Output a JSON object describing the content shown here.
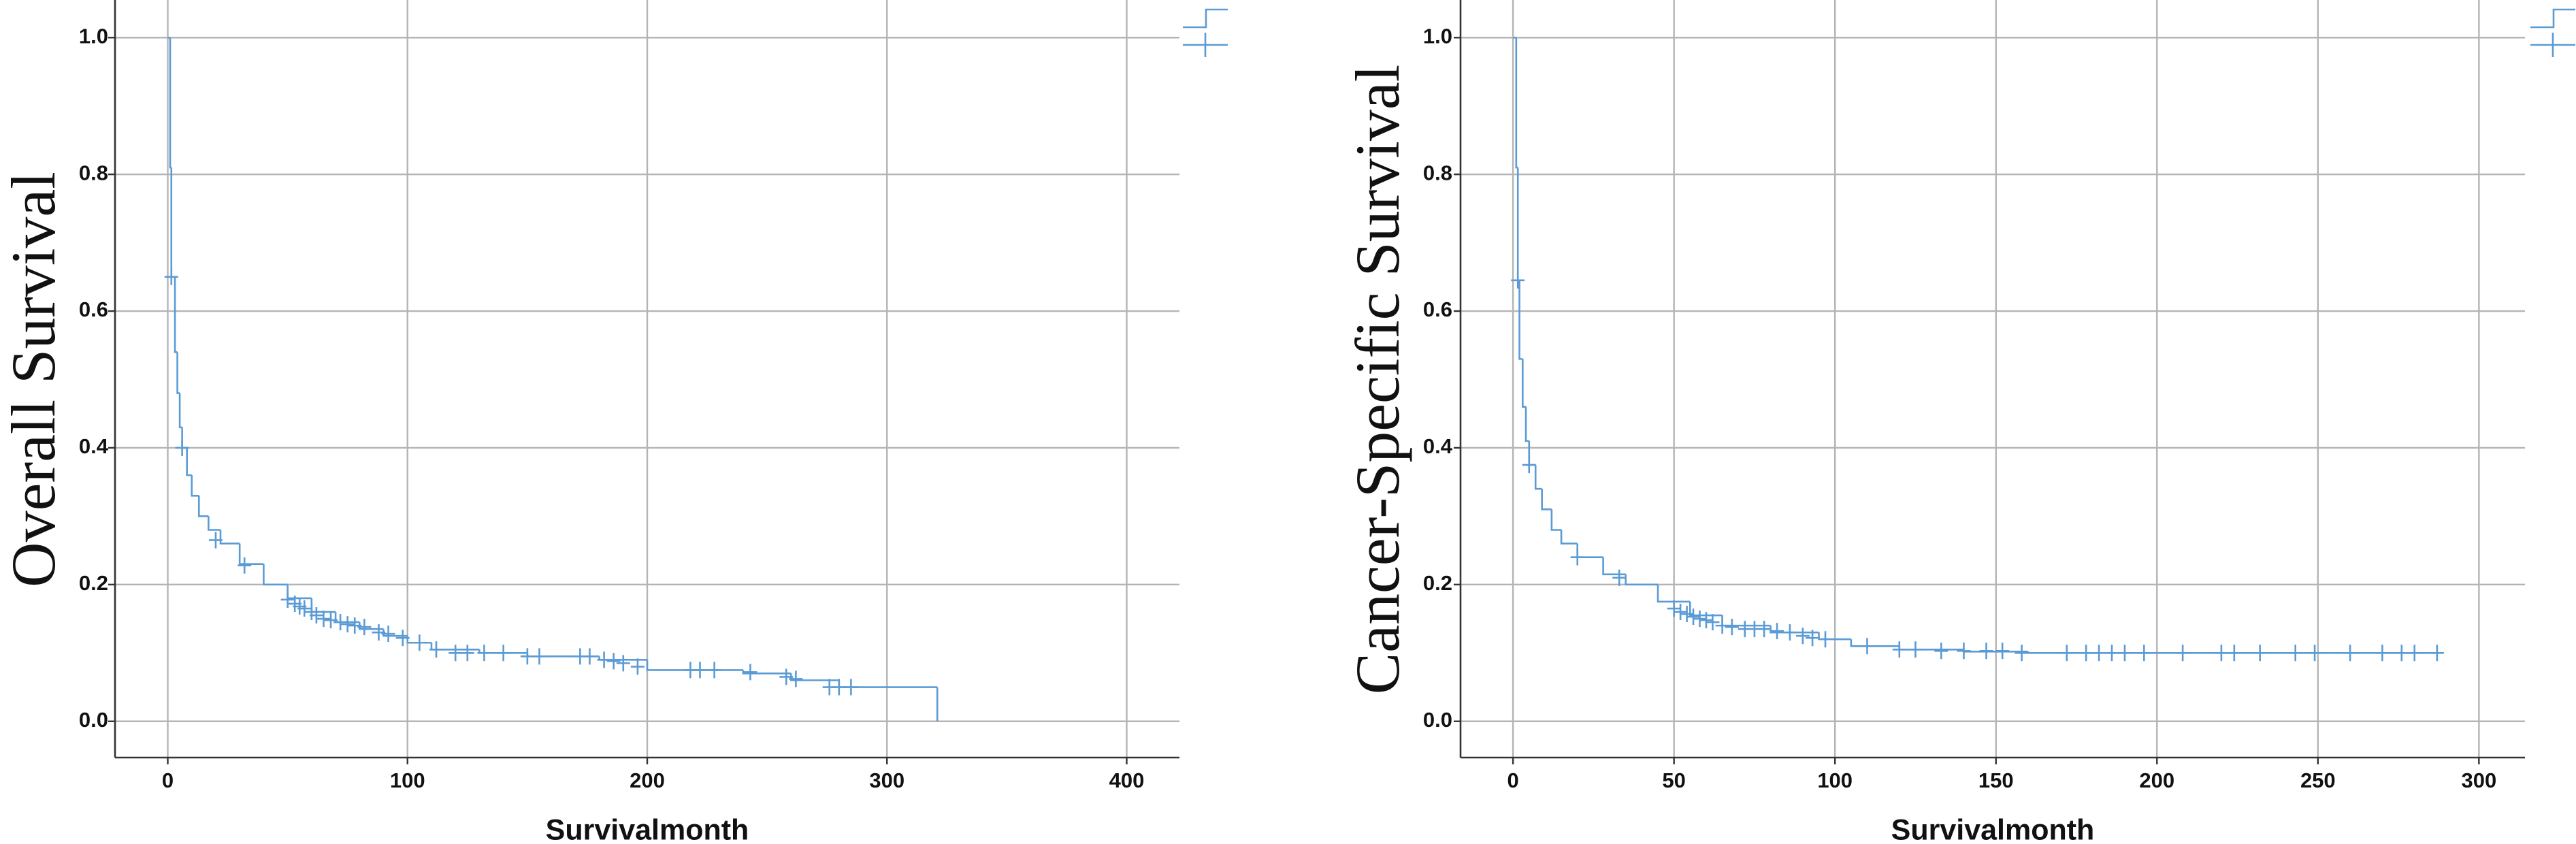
{
  "chart_data": [
    {
      "type": "line",
      "xlabel": "Survivalmonth",
      "ylabel": "Overall Survival",
      "xlim": [
        -22,
        422
      ],
      "ylim": [
        -0.053,
        1.055
      ],
      "xticks": [
        0,
        100,
        200,
        300,
        400
      ],
      "yticks": [
        {
          "value": 0,
          "label": "0.0"
        },
        0.2,
        0.4,
        0.6,
        0.8,
        {
          "value": 1,
          "label": "1.0"
        }
      ],
      "grid": true,
      "series": [
        {
          "color": "#5b9bd5",
          "step": true,
          "x": [
            0,
            1,
            1.5,
            3,
            4,
            5,
            6,
            8,
            10,
            13,
            17,
            22,
            30,
            40,
            50,
            60,
            70,
            80,
            90,
            100,
            110,
            130,
            150,
            180,
            200,
            240,
            260,
            280,
            321,
            321
          ],
          "values": [
            1.0,
            0.81,
            0.65,
            0.54,
            0.48,
            0.43,
            0.4,
            0.36,
            0.33,
            0.3,
            0.28,
            0.26,
            0.23,
            0.2,
            0.18,
            0.16,
            0.145,
            0.135,
            0.125,
            0.115,
            0.105,
            0.1,
            0.095,
            0.09,
            0.075,
            0.07,
            0.06,
            0.05,
            0.05,
            0.0
          ]
        },
        {
          "color": "#5b9bd5",
          "marker": "+",
          "x": [
            1.5,
            6,
            20,
            32,
            50,
            53,
            55,
            57,
            60,
            62,
            65,
            68,
            72,
            75,
            78,
            82,
            88,
            92,
            98,
            105,
            112,
            120,
            125,
            132,
            140,
            150,
            155,
            172,
            176,
            182,
            186,
            190,
            196,
            218,
            222,
            228,
            243,
            258,
            262,
            276,
            280,
            285
          ],
          "values": [
            0.65,
            0.4,
            0.265,
            0.228,
            0.178,
            0.172,
            0.168,
            0.165,
            0.16,
            0.155,
            0.15,
            0.148,
            0.145,
            0.142,
            0.14,
            0.138,
            0.13,
            0.128,
            0.122,
            0.115,
            0.105,
            0.1,
            0.1,
            0.1,
            0.1,
            0.095,
            0.095,
            0.095,
            0.095,
            0.09,
            0.088,
            0.085,
            0.08,
            0.075,
            0.075,
            0.075,
            0.072,
            0.065,
            0.062,
            0.05,
            0.05,
            0.05
          ]
        }
      ]
    },
    {
      "type": "line",
      "xlabel": "Survivalmonth",
      "ylabel": "Cancer-Specific Survival",
      "xlim": [
        -16.3,
        314.3
      ],
      "ylim": [
        -0.053,
        1.055
      ],
      "xticks": [
        0,
        50,
        100,
        150,
        200,
        250,
        300
      ],
      "yticks": [
        {
          "value": 0,
          "label": "0.0"
        },
        0.2,
        0.4,
        0.6,
        0.8,
        {
          "value": 1,
          "label": "1.0"
        }
      ],
      "grid": true,
      "series": [
        {
          "color": "#5b9bd5",
          "step": true,
          "x": [
            0,
            1,
            1.5,
            2,
            3,
            4,
            5,
            7,
            9,
            12,
            15,
            20,
            28,
            35,
            45,
            55,
            65,
            80,
            95,
            105,
            120,
            140,
            160,
            287
          ],
          "values": [
            1.0,
            0.81,
            0.645,
            0.53,
            0.46,
            0.41,
            0.375,
            0.34,
            0.31,
            0.28,
            0.26,
            0.24,
            0.215,
            0.2,
            0.175,
            0.155,
            0.14,
            0.13,
            0.12,
            0.11,
            0.105,
            0.102,
            0.1,
            0.1
          ]
        },
        {
          "color": "#5b9bd5",
          "marker": "+",
          "x": [
            1.5,
            5,
            20,
            33,
            50,
            52,
            54,
            56,
            58,
            60,
            62,
            65,
            68,
            72,
            75,
            78,
            82,
            86,
            90,
            93,
            97,
            110,
            120,
            125,
            133,
            140,
            147,
            152,
            158,
            172,
            178,
            182,
            186,
            190,
            196,
            208,
            220,
            224,
            232,
            243,
            249,
            260,
            270,
            276,
            280,
            287
          ],
          "values": [
            0.645,
            0.375,
            0.24,
            0.21,
            0.165,
            0.16,
            0.157,
            0.153,
            0.15,
            0.148,
            0.145,
            0.14,
            0.138,
            0.135,
            0.135,
            0.135,
            0.132,
            0.13,
            0.125,
            0.122,
            0.12,
            0.11,
            0.105,
            0.105,
            0.103,
            0.103,
            0.103,
            0.103,
            0.1,
            0.1,
            0.1,
            0.1,
            0.1,
            0.1,
            0.1,
            0.1,
            0.1,
            0.1,
            0.1,
            0.1,
            0.1,
            0.1,
            0.1,
            0.1,
            0.1,
            0.1
          ]
        }
      ]
    }
  ]
}
